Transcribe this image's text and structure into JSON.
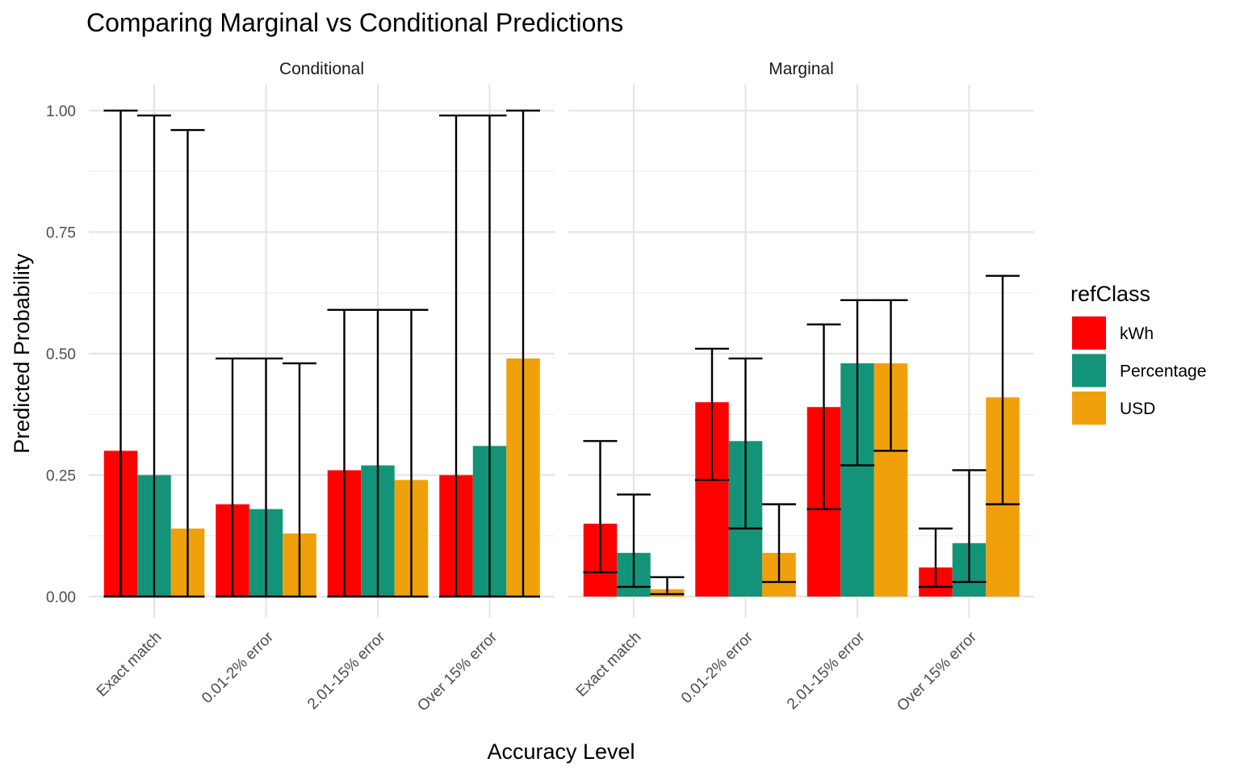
{
  "chart_data": {
    "type": "bar",
    "title": "Comparing Marginal vs Conditional Predictions",
    "xlabel": "Accuracy Level",
    "ylabel": "Predicted Probability",
    "ylim": [
      0,
      1
    ],
    "yticks": [
      "0.00",
      "0.25",
      "0.50",
      "0.75",
      "1.00"
    ],
    "ytick_values": [
      0,
      0.25,
      0.5,
      0.75,
      1.0
    ],
    "grid": true,
    "legend": {
      "title": "refClass",
      "placement": "right"
    },
    "categories": [
      "Exact match",
      "0.01-2% error",
      "2.01-15% error",
      "Over 15% error"
    ],
    "series_meta": [
      {
        "name": "kWh",
        "color": "#FF0000"
      },
      {
        "name": "Percentage",
        "color": "#139479"
      },
      {
        "name": "USD",
        "color": "#EFA00B"
      }
    ],
    "panels": [
      {
        "name": "Conditional",
        "series": [
          {
            "name": "kWh",
            "values": [
              0.3,
              0.19,
              0.26,
              0.25
            ],
            "lower": [
              0.0,
              0.0,
              0.0,
              0.0
            ],
            "upper": [
              1.0,
              0.49,
              0.59,
              0.99
            ]
          },
          {
            "name": "Percentage",
            "values": [
              0.25,
              0.18,
              0.27,
              0.31
            ],
            "lower": [
              0.0,
              0.0,
              0.0,
              0.0
            ],
            "upper": [
              0.99,
              0.49,
              0.59,
              0.99
            ]
          },
          {
            "name": "USD",
            "values": [
              0.14,
              0.13,
              0.24,
              0.49
            ],
            "lower": [
              0.0,
              0.0,
              0.0,
              0.0
            ],
            "upper": [
              0.96,
              0.48,
              0.59,
              1.0
            ]
          }
        ]
      },
      {
        "name": "Marginal",
        "series": [
          {
            "name": "kWh",
            "values": [
              0.15,
              0.4,
              0.39,
              0.06
            ],
            "lower": [
              0.05,
              0.24,
              0.18,
              0.02
            ],
            "upper": [
              0.32,
              0.51,
              0.56,
              0.14
            ]
          },
          {
            "name": "Percentage",
            "values": [
              0.09,
              0.32,
              0.48,
              0.11
            ],
            "lower": [
              0.02,
              0.14,
              0.27,
              0.03
            ],
            "upper": [
              0.21,
              0.49,
              0.61,
              0.26
            ]
          },
          {
            "name": "USD",
            "values": [
              0.015,
              0.09,
              0.48,
              0.41
            ],
            "lower": [
              0.005,
              0.03,
              0.3,
              0.19
            ],
            "upper": [
              0.04,
              0.19,
              0.61,
              0.66
            ]
          }
        ]
      }
    ]
  }
}
